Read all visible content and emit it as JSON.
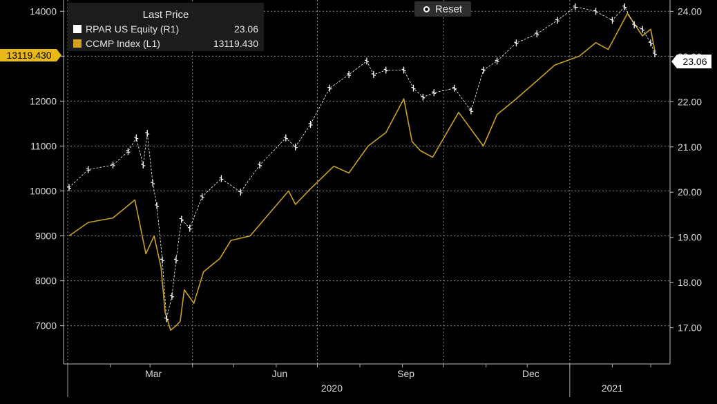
{
  "legend": {
    "header": "Last Price",
    "items": [
      {
        "name": "RPAR US Equity  (R1)",
        "value": "23.06",
        "color": "#ffffff"
      },
      {
        "name": "CCMP Index  (L1)",
        "value": "13119.430",
        "color": "#d4a017"
      }
    ]
  },
  "reset_label": "Reset",
  "colors": {
    "background": "#000000",
    "grid": "#8a8a8a",
    "ccmp": "#c9a227",
    "rpar": "#ffffff",
    "badge_left": "#e8b818",
    "badge_right": "#ffffff"
  },
  "chart_data": {
    "type": "line",
    "left_axis": {
      "ticks": [
        7000,
        8000,
        9000,
        10000,
        11000,
        12000,
        13000,
        14000
      ],
      "ylim": [
        6150,
        14250
      ]
    },
    "right_axis": {
      "ticks": [
        "17.00",
        "18.00",
        "19.00",
        "20.00",
        "21.00",
        "22.00",
        "23.00",
        "24.00"
      ],
      "ylim": [
        16.2,
        24.25
      ]
    },
    "x_axis": {
      "month_labels": [
        "Mar",
        "Jun",
        "Sep",
        "Dec"
      ],
      "year_labels": [
        "2020",
        "2021"
      ],
      "range": [
        "2020-01-02",
        "2021-03-04"
      ]
    },
    "last_value_badges": {
      "left": "13119.430",
      "right": "23.06"
    },
    "series": [
      {
        "name": "CCMP Index",
        "axis": "left",
        "x": [
          "2020-01-02",
          "2020-01-16",
          "2020-02-03",
          "2020-02-19",
          "2020-02-27",
          "2020-03-04",
          "2020-03-09",
          "2020-03-12",
          "2020-03-16",
          "2020-03-20",
          "2020-03-23",
          "2020-03-26",
          "2020-04-02",
          "2020-04-09",
          "2020-04-21",
          "2020-04-29",
          "2020-05-13",
          "2020-05-27",
          "2020-06-10",
          "2020-06-15",
          "2020-06-26",
          "2020-07-13",
          "2020-07-24",
          "2020-08-07",
          "2020-08-20",
          "2020-09-02",
          "2020-09-08",
          "2020-09-14",
          "2020-09-23",
          "2020-10-12",
          "2020-10-30",
          "2020-11-09",
          "2020-11-23",
          "2020-12-08",
          "2020-12-21",
          "2021-01-08",
          "2021-01-20",
          "2021-01-29",
          "2021-02-12",
          "2021-02-23",
          "2021-03-01",
          "2021-03-04"
        ],
        "values": [
          9000,
          9300,
          9400,
          9800,
          8600,
          9000,
          8300,
          7300,
          6900,
          7000,
          7100,
          7800,
          7500,
          8200,
          8500,
          8900,
          9000,
          9500,
          10000,
          9700,
          10050,
          10550,
          10400,
          11000,
          11300,
          12050,
          11100,
          10900,
          10750,
          11750,
          11000,
          11700,
          12050,
          12450,
          12800,
          13000,
          13300,
          13150,
          13950,
          13450,
          13600,
          13119
        ]
      },
      {
        "name": "RPAR US Equity",
        "axis": "right",
        "x": [
          "2020-01-02",
          "2020-01-16",
          "2020-02-03",
          "2020-02-14",
          "2020-02-20",
          "2020-02-25",
          "2020-02-28",
          "2020-03-03",
          "2020-03-06",
          "2020-03-10",
          "2020-03-13",
          "2020-03-17",
          "2020-03-20",
          "2020-03-24",
          "2020-03-30",
          "2020-04-08",
          "2020-04-22",
          "2020-05-06",
          "2020-05-20",
          "2020-06-08",
          "2020-06-15",
          "2020-06-26",
          "2020-07-10",
          "2020-07-24",
          "2020-08-06",
          "2020-08-11",
          "2020-08-20",
          "2020-09-02",
          "2020-09-09",
          "2020-09-16",
          "2020-09-24",
          "2020-10-09",
          "2020-10-21",
          "2020-10-30",
          "2020-11-09",
          "2020-11-23",
          "2020-12-08",
          "2020-12-23",
          "2021-01-05",
          "2021-01-20",
          "2021-02-01",
          "2021-02-10",
          "2021-02-17",
          "2021-02-23",
          "2021-03-01",
          "2021-03-04"
        ],
        "values": [
          20.1,
          20.5,
          20.6,
          20.9,
          21.2,
          20.6,
          21.3,
          20.2,
          19.7,
          18.5,
          17.2,
          17.7,
          18.5,
          19.4,
          19.2,
          19.9,
          20.3,
          20.0,
          20.6,
          21.2,
          21.0,
          21.5,
          22.3,
          22.6,
          22.9,
          22.6,
          22.7,
          22.7,
          22.3,
          22.1,
          22.2,
          22.3,
          21.8,
          22.7,
          22.9,
          23.3,
          23.5,
          23.8,
          24.1,
          24.0,
          23.8,
          24.1,
          23.7,
          23.6,
          23.3,
          23.06
        ]
      }
    ]
  }
}
